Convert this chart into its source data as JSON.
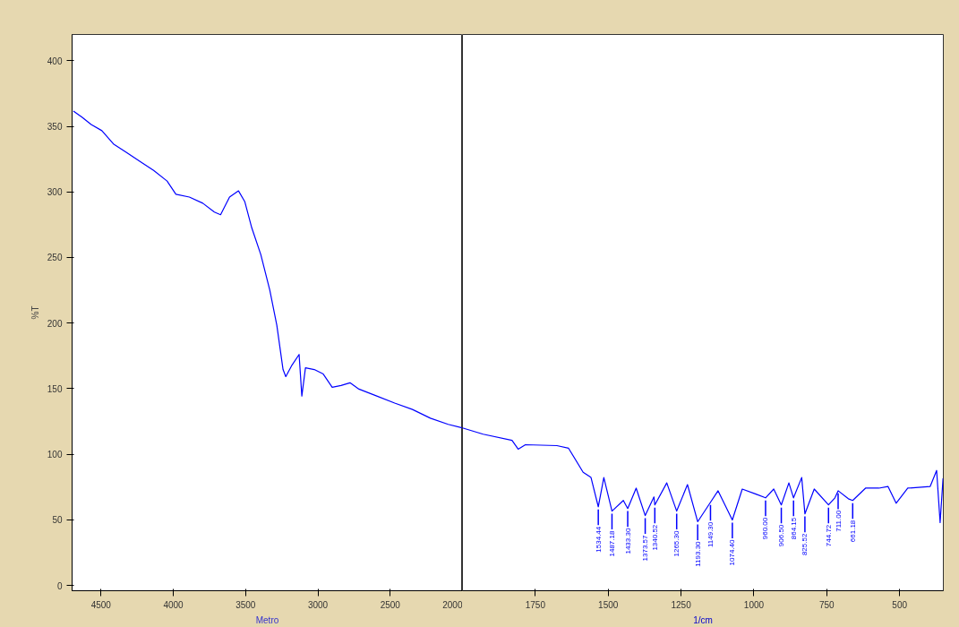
{
  "chart_data": [
    {
      "type": "line",
      "ylabel": "%T",
      "annotations": [
        "Metro"
      ],
      "xlim": [
        4700,
        2000
      ],
      "ylim": [
        -4,
        420
      ],
      "xticks": [
        4500,
        4000,
        3500,
        3000,
        2500,
        2000
      ],
      "yticks": [
        0,
        50,
        100,
        150,
        200,
        250,
        300,
        350,
        400
      ],
      "grid": false,
      "x": [
        4691,
        4630,
        4568,
        4494,
        4414,
        4321,
        4228,
        4136,
        4043,
        3982,
        3889,
        3796,
        3716,
        3673,
        3611,
        3549,
        3506,
        3457,
        3395,
        3333,
        3284,
        3241,
        3222,
        3179,
        3130,
        3111,
        3086,
        3025,
        2963,
        2901,
        2840,
        2778,
        2716,
        2593,
        2469,
        2346,
        2222,
        2099,
        2000
      ],
      "series": [
        {
          "color": "#0000ff",
          "values": [
            361.6,
            356.8,
            351.4,
            346.7,
            336.6,
            329.8,
            323.1,
            316.4,
            308.3,
            298.2,
            296.1,
            291.4,
            284.6,
            282.6,
            296.1,
            300.8,
            292.7,
            272.5,
            252.3,
            225.3,
            198.3,
            164.6,
            159.2,
            168.0,
            176.1,
            144.4,
            165.9,
            164.6,
            161.2,
            151.1,
            152.4,
            154.5,
            149.7,
            144.4,
            139.0,
            134.2,
            127.5,
            122.8,
            120.1
          ]
        }
      ]
    },
    {
      "type": "line",
      "xlabel": "1/cm",
      "tick_labels": "x",
      "xlim": [
        2000,
        350
      ],
      "ylim": [
        -4,
        420
      ],
      "xticks": [
        1750,
        1500,
        1250,
        1000,
        750,
        500
      ],
      "yticks": [
        0,
        50,
        100,
        150,
        200,
        250,
        300,
        350,
        400
      ],
      "grid": false,
      "x": [
        2000,
        1929,
        1830,
        1809,
        1784,
        1676,
        1636,
        1586,
        1559,
        1534,
        1515,
        1487,
        1448,
        1433,
        1404,
        1373,
        1343,
        1340,
        1299,
        1265,
        1228,
        1193,
        1149,
        1123,
        1074,
        1040,
        991,
        960,
        932,
        906,
        880,
        864,
        836,
        825,
        793,
        744,
        722,
        711,
        676,
        661,
        617,
        571,
        540,
        512,
        472,
        395,
        373,
        361,
        351
      ],
      "series": [
        {
          "color": "#0000ff",
          "values": [
            120.1,
            115.3,
            110.6,
            103.9,
            107.3,
            106.6,
            104.6,
            86.3,
            82.3,
            60.0,
            82.3,
            56.7,
            64.8,
            58.7,
            74.2,
            53.3,
            67.5,
            61.4,
            78.2,
            56.7,
            76.9,
            48.6,
            63.4,
            72.2,
            49.9,
            73.5,
            69.5,
            66.8,
            73.5,
            61.4,
            78.2,
            66.8,
            82.3,
            54.6,
            73.5,
            61.4,
            66.8,
            72.2,
            66.1,
            64.8,
            74.2,
            74.2,
            75.5,
            62.7,
            74.2,
            75.5,
            87.7,
            47.9,
            81.6
          ]
        }
      ],
      "annotations": [
        {
          "text": "1534.44",
          "x": 1534,
          "y": 60.0
        },
        {
          "text": "1487.18",
          "x": 1487,
          "y": 56.7
        },
        {
          "text": "1433.30",
          "x": 1433,
          "y": 58.7
        },
        {
          "text": "1373.57",
          "x": 1373,
          "y": 53.3
        },
        {
          "text": "1340.52",
          "x": 1340,
          "y": 61.4
        },
        {
          "text": "1265.30",
          "x": 1265,
          "y": 56.7
        },
        {
          "text": "1193.30",
          "x": 1193,
          "y": 48.6
        },
        {
          "text": "1149.30",
          "x": 1149,
          "y": 63.4
        },
        {
          "text": "1074.40",
          "x": 1074,
          "y": 49.9
        },
        {
          "text": "960.00",
          "x": 960,
          "y": 66.8
        },
        {
          "text": "906.50",
          "x": 906,
          "y": 61.4
        },
        {
          "text": "864.15",
          "x": 864,
          "y": 66.8
        },
        {
          "text": "825.52",
          "x": 825,
          "y": 54.6
        },
        {
          "text": "744.72",
          "x": 744,
          "y": 61.4
        },
        {
          "text": "711.00",
          "x": 711,
          "y": 72.2
        },
        {
          "text": "661.18",
          "x": 661,
          "y": 64.8
        }
      ]
    }
  ]
}
